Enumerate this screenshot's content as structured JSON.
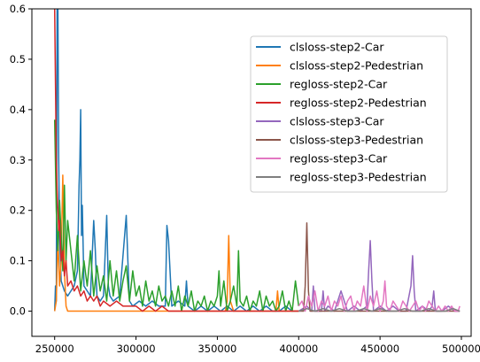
{
  "chart_data": {
    "type": "line",
    "title": "",
    "xlabel": "",
    "ylabel": "",
    "xlim": [
      236000,
      506000
    ],
    "ylim": [
      -0.05,
      0.6
    ],
    "xticks": [
      250000,
      300000,
      350000,
      400000,
      450000,
      500000
    ],
    "xtick_labels": [
      "250000",
      "300000",
      "350000",
      "400000",
      "450000",
      "500000"
    ],
    "yticks": [
      0.0,
      0.1,
      0.2,
      0.3,
      0.4,
      0.5,
      0.6
    ],
    "ytick_labels": [
      "0.0",
      "0.1",
      "0.2",
      "0.3",
      "0.4",
      "0.5",
      "0.6"
    ],
    "grid": false,
    "legend_position": "upper right",
    "series": [
      {
        "name": "clsloss-step2-Car",
        "color": "#1f77b4",
        "x": [
          250000,
          250500,
          251000,
          251500,
          252000,
          252500,
          253000,
          254000,
          255000,
          256000,
          258000,
          260000,
          262000,
          264000,
          265000,
          265500,
          266000,
          266500,
          267000,
          268000,
          270000,
          272000,
          274000,
          275000,
          276000,
          278000,
          280000,
          282000,
          283000,
          284000,
          286000,
          290000,
          294000,
          295000,
          296000,
          298000,
          302000,
          306000,
          310000,
          314000,
          318000,
          319000,
          320000,
          322000,
          326000,
          330000,
          331000,
          332000,
          336000,
          340000,
          344000,
          348000,
          352000,
          356000,
          360000,
          364000,
          368000,
          372000,
          376000,
          380000,
          384000,
          388000,
          392000,
          396000,
          400000
        ],
        "y": [
          0.0,
          0.05,
          0.02,
          0.6,
          0.6,
          0.3,
          0.15,
          0.06,
          0.05,
          0.04,
          0.03,
          0.04,
          0.05,
          0.08,
          0.25,
          0.3,
          0.4,
          0.15,
          0.21,
          0.05,
          0.04,
          0.03,
          0.18,
          0.12,
          0.03,
          0.02,
          0.03,
          0.19,
          0.05,
          0.03,
          0.02,
          0.03,
          0.19,
          0.1,
          0.02,
          0.01,
          0.02,
          0.01,
          0.02,
          0.01,
          0.01,
          0.17,
          0.14,
          0.01,
          0.02,
          0.01,
          0.06,
          0.01,
          0.0,
          0.01,
          0.0,
          0.01,
          0.0,
          0.01,
          0.0,
          0.01,
          0.0,
          0.01,
          0.0,
          0.01,
          0.0,
          0.0,
          0.01,
          0.0,
          0.0
        ]
      },
      {
        "name": "clsloss-step2-Pedestrian",
        "color": "#ff7f0e",
        "x": [
          250000,
          251000,
          252000,
          253000,
          254000,
          255000,
          256000,
          257000,
          258000,
          260000,
          265000,
          270000,
          280000,
          290000,
          300000,
          310000,
          320000,
          330000,
          340000,
          350000,
          355000,
          356000,
          357000,
          358000,
          360000,
          370000,
          380000,
          386000,
          387000,
          388000,
          390000,
          400000
        ],
        "y": [
          0.0,
          0.02,
          0.15,
          0.05,
          0.1,
          0.27,
          0.08,
          0.01,
          0.0,
          0.0,
          0.0,
          0.0,
          0.0,
          0.0,
          0.0,
          0.0,
          0.0,
          0.0,
          0.0,
          0.0,
          0.0,
          0.02,
          0.15,
          0.02,
          0.0,
          0.0,
          0.0,
          0.0,
          0.04,
          0.0,
          0.0,
          0.0
        ]
      },
      {
        "name": "regloss-step2-Car",
        "color": "#2ca02c",
        "x": [
          250000,
          251000,
          252000,
          253000,
          254000,
          255000,
          256000,
          257000,
          258000,
          260000,
          262000,
          264000,
          266000,
          268000,
          270000,
          272000,
          274000,
          276000,
          278000,
          280000,
          282000,
          284000,
          286000,
          288000,
          290000,
          292000,
          294000,
          296000,
          298000,
          300000,
          302000,
          304000,
          306000,
          308000,
          310000,
          312000,
          314000,
          316000,
          318000,
          320000,
          322000,
          324000,
          326000,
          328000,
          330000,
          332000,
          334000,
          336000,
          338000,
          340000,
          342000,
          344000,
          346000,
          348000,
          350000,
          351000,
          352000,
          354000,
          356000,
          358000,
          360000,
          362000,
          363000,
          364000,
          366000,
          368000,
          370000,
          372000,
          374000,
          376000,
          378000,
          380000,
          382000,
          384000,
          386000,
          388000,
          390000,
          392000,
          394000,
          396000,
          398000,
          400000
        ],
        "y": [
          0.38,
          0.2,
          0.12,
          0.22,
          0.15,
          0.08,
          0.25,
          0.1,
          0.18,
          0.12,
          0.06,
          0.15,
          0.04,
          0.1,
          0.05,
          0.12,
          0.03,
          0.09,
          0.04,
          0.07,
          0.02,
          0.1,
          0.03,
          0.08,
          0.02,
          0.06,
          0.09,
          0.02,
          0.08,
          0.03,
          0.05,
          0.01,
          0.06,
          0.02,
          0.04,
          0.01,
          0.05,
          0.02,
          0.03,
          0.01,
          0.04,
          0.01,
          0.05,
          0.0,
          0.03,
          0.01,
          0.04,
          0.0,
          0.02,
          0.01,
          0.03,
          0.0,
          0.02,
          0.01,
          0.03,
          0.08,
          0.01,
          0.06,
          0.0,
          0.02,
          0.05,
          0.01,
          0.12,
          0.02,
          0.01,
          0.03,
          0.0,
          0.02,
          0.01,
          0.04,
          0.0,
          0.03,
          0.01,
          0.02,
          0.0,
          0.01,
          0.04,
          0.0,
          0.02,
          0.0,
          0.06,
          0.01
        ]
      },
      {
        "name": "regloss-step2-Pedestrian",
        "color": "#d62728",
        "x": [
          250000,
          250500,
          251000,
          251500,
          252000,
          252500,
          253000,
          254000,
          255000,
          256000,
          257000,
          258000,
          260000,
          262000,
          264000,
          266000,
          268000,
          270000,
          272000,
          274000,
          276000,
          278000,
          280000,
          284000,
          288000,
          292000,
          296000,
          300000,
          304000,
          308000,
          312000,
          316000,
          320000,
          330000,
          340000,
          350000,
          360000,
          370000,
          380000,
          390000,
          400000
        ],
        "y": [
          0.6,
          0.45,
          0.3,
          0.24,
          0.2,
          0.16,
          0.18,
          0.1,
          0.12,
          0.07,
          0.1,
          0.05,
          0.06,
          0.04,
          0.05,
          0.03,
          0.04,
          0.02,
          0.03,
          0.02,
          0.03,
          0.01,
          0.02,
          0.01,
          0.02,
          0.01,
          0.01,
          0.01,
          0.0,
          0.01,
          0.0,
          0.01,
          0.0,
          0.0,
          0.0,
          0.0,
          0.0,
          0.0,
          0.0,
          0.0,
          0.0
        ]
      },
      {
        "name": "clsloss-step3-Car",
        "color": "#9467bd",
        "x": [
          400000,
          405000,
          408000,
          409000,
          410000,
          414000,
          415000,
          416000,
          418000,
          422000,
          426000,
          430000,
          434000,
          438000,
          442000,
          443000,
          444000,
          445000,
          446000,
          450000,
          454000,
          458000,
          462000,
          466000,
          469000,
          470000,
          471000,
          472000,
          476000,
          480000,
          482000,
          483000,
          484000,
          488000,
          492000,
          496000,
          499000
        ],
        "y": [
          0.0,
          0.01,
          0.0,
          0.05,
          0.0,
          0.0,
          0.04,
          0.0,
          0.01,
          0.0,
          0.04,
          0.0,
          0.01,
          0.0,
          0.01,
          0.08,
          0.14,
          0.06,
          0.0,
          0.01,
          0.0,
          0.01,
          0.0,
          0.0,
          0.05,
          0.11,
          0.04,
          0.0,
          0.01,
          0.0,
          0.01,
          0.04,
          0.0,
          0.0,
          0.01,
          0.0,
          0.0
        ]
      },
      {
        "name": "clsloss-step3-Pedestrian",
        "color": "#8c564b",
        "x": [
          400000,
          403000,
          404000,
          405000,
          406000,
          407000,
          410000,
          420000,
          430000,
          440000,
          450000,
          460000,
          470000,
          480000,
          490000,
          499000
        ],
        "y": [
          0.0,
          0.0,
          0.05,
          0.175,
          0.04,
          0.0,
          0.0,
          0.0,
          0.0,
          0.0,
          0.0,
          0.0,
          0.0,
          0.0,
          0.0,
          0.0
        ]
      },
      {
        "name": "regloss-step3-Car",
        "color": "#e377c2",
        "x": [
          400000,
          402000,
          404000,
          406000,
          408000,
          410000,
          412000,
          414000,
          416000,
          418000,
          420000,
          422000,
          424000,
          426000,
          428000,
          430000,
          432000,
          434000,
          436000,
          438000,
          440000,
          442000,
          444000,
          446000,
          448000,
          450000,
          452000,
          453000,
          454000,
          456000,
          458000,
          460000,
          462000,
          464000,
          466000,
          468000,
          470000,
          472000,
          474000,
          476000,
          478000,
          480000,
          482000,
          484000,
          486000,
          488000,
          490000,
          492000,
          494000,
          496000,
          498000,
          499000
        ],
        "y": [
          0.01,
          0.02,
          0.0,
          0.03,
          0.01,
          0.04,
          0.0,
          0.02,
          0.01,
          0.03,
          0.0,
          0.02,
          0.01,
          0.03,
          0.0,
          0.02,
          0.03,
          0.0,
          0.02,
          0.01,
          0.05,
          0.0,
          0.03,
          0.01,
          0.04,
          0.0,
          0.02,
          0.06,
          0.01,
          0.0,
          0.02,
          0.01,
          0.0,
          0.02,
          0.01,
          0.0,
          0.01,
          0.02,
          0.0,
          0.01,
          0.0,
          0.02,
          0.01,
          0.0,
          0.01,
          0.0,
          0.01,
          0.0,
          0.01,
          0.0,
          0.0,
          0.01
        ]
      },
      {
        "name": "regloss-step3-Pedestrian",
        "color": "#7f7f7f",
        "x": [
          400000,
          405000,
          410000,
          415000,
          420000,
          425000,
          430000,
          435000,
          440000,
          445000,
          450000,
          455000,
          460000,
          465000,
          470000,
          475000,
          480000,
          485000,
          490000,
          495000,
          499000
        ],
        "y": [
          0.0,
          0.005,
          0.0,
          0.005,
          0.0,
          0.005,
          0.0,
          0.0,
          0.005,
          0.0,
          0.005,
          0.0,
          0.0,
          0.005,
          0.0,
          0.0,
          0.005,
          0.0,
          0.0,
          0.005,
          0.0
        ]
      }
    ]
  }
}
